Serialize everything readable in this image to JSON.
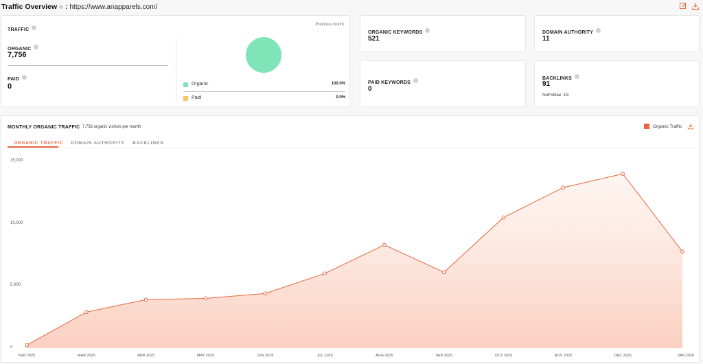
{
  "header": {
    "title": "Traffic Overview",
    "separator": ":",
    "url": "https://www.anapparels.com/"
  },
  "traffic": {
    "label": "TRAFFIC",
    "period": "Previous month",
    "organic_label": "ORGANIC",
    "organic_value": "7,756",
    "paid_label": "PAID",
    "paid_value": "0",
    "legend": [
      {
        "name": "Organic",
        "pct": "100.0%",
        "color": "#7fe5b9"
      },
      {
        "name": "Paid",
        "pct": "0.0%",
        "color": "#f4c56a"
      }
    ]
  },
  "organic_keywords": {
    "label": "ORGANIC KEYWORDS",
    "value": "521"
  },
  "paid_keywords": {
    "label": "PAID KEYWORDS",
    "value": "0"
  },
  "domain_authority": {
    "label": "DOMAIN AUTHORITY",
    "value": "11"
  },
  "backlinks": {
    "label": "BACKLINKS",
    "value": "91",
    "nofollow": "NoFollow: 19"
  },
  "monthly": {
    "title": "MONTHLY ORGANIC TRAFFIC",
    "subtitle": "7,756 organic visitors per month",
    "legend_label": "Organic Traffic",
    "tabs": [
      "ORGANIC TRAFFIC",
      "DOMAIN AUTHORITY",
      "BACKLINKS"
    ],
    "active_tab": 0
  },
  "colors": {
    "accent": "#e8663d",
    "organic": "#7fe5b9",
    "paid": "#f4c56a"
  },
  "icons": [
    "edit-icon",
    "download-icon",
    "info-icon"
  ],
  "chart_data": {
    "type": "area",
    "x": [
      "FEB 2025",
      "MAR 2025",
      "APR 2025",
      "MAY 2025",
      "JUN 2025",
      "JUL 2025",
      "AUG 2025",
      "SEP 2025",
      "OCT 2025",
      "NOV 2025",
      "DEC 2025",
      "JAN 2026"
    ],
    "series": [
      {
        "name": "Organic Traffic",
        "values": [
          250,
          2900,
          3900,
          4000,
          4400,
          6000,
          8300,
          6100,
          10500,
          12900,
          14000,
          7756
        ]
      }
    ],
    "ylim": [
      0,
      15000
    ],
    "yticks": [
      "0",
      "5,000",
      "10,000",
      "15,000"
    ],
    "yticks_values": [
      0,
      5000,
      10000,
      15000
    ],
    "legend": "top-right",
    "grid": false
  }
}
